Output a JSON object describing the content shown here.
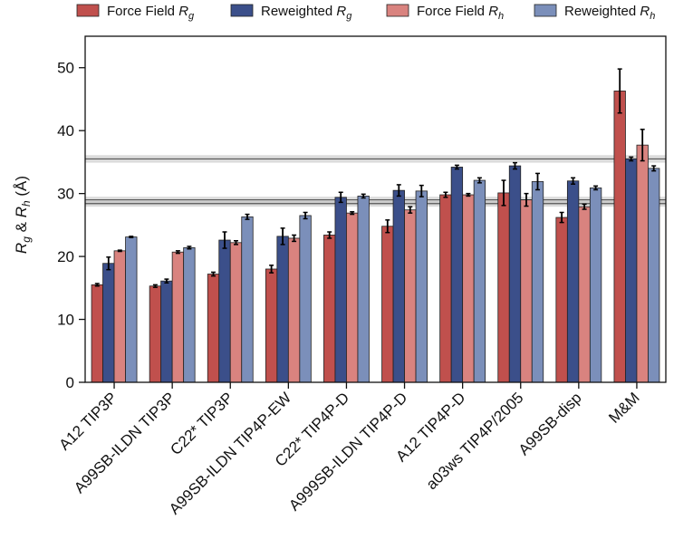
{
  "chart_data": {
    "type": "bar",
    "ylabel": "R_g & R_h (Å)",
    "ylim": [
      0,
      55
    ],
    "yticks": [
      0,
      10,
      20,
      30,
      40,
      50
    ],
    "legend_position": "top",
    "categories": [
      "A12 TIP3P",
      "A99SB-ILDN TIP3P",
      "C22* TIP3P",
      "A99SB-ILDN TIP4P-EW",
      "C22* TIP4P-D",
      "A999SB-ILDN TIP4P-D",
      "A12 TIP4P-D",
      "a03ws TIP4P/2005",
      "A99SB-disp",
      "M&M"
    ],
    "series": [
      {
        "name": "Force Field",
        "sub": "g",
        "color": "#c0504d",
        "values": [
          15.5,
          15.3,
          17.2,
          18.0,
          23.4,
          24.8,
          29.8,
          30.1,
          26.2,
          46.3
        ],
        "errors": [
          0.2,
          0.2,
          0.3,
          0.6,
          0.5,
          1.0,
          0.4,
          2.0,
          0.8,
          3.5
        ]
      },
      {
        "name": "Reweighted",
        "sub": "g",
        "color": "#3b4f8a",
        "values": [
          18.9,
          16.1,
          22.6,
          23.2,
          29.4,
          30.5,
          34.2,
          34.4,
          32.0,
          35.5
        ],
        "errors": [
          1.0,
          0.3,
          1.3,
          1.3,
          0.8,
          0.9,
          0.3,
          0.5,
          0.5,
          0.3
        ]
      },
      {
        "name": "Force Field",
        "sub": "h",
        "color": "#d9837f",
        "values": [
          20.9,
          20.7,
          22.2,
          22.9,
          26.9,
          27.4,
          29.8,
          29.0,
          27.9,
          37.7
        ],
        "errors": [
          0.1,
          0.2,
          0.3,
          0.5,
          0.2,
          0.5,
          0.2,
          1.0,
          0.4,
          2.5
        ]
      },
      {
        "name": "Reweighted",
        "sub": "h",
        "color": "#7b8fba",
        "values": [
          23.1,
          21.4,
          26.3,
          26.5,
          29.6,
          30.4,
          32.1,
          31.9,
          30.9,
          34.0
        ],
        "errors": [
          0.1,
          0.2,
          0.4,
          0.5,
          0.3,
          0.9,
          0.4,
          1.3,
          0.3,
          0.4
        ]
      }
    ],
    "reference_lines": [
      {
        "value": 35.5,
        "band": 0.6
      },
      {
        "value": 29.0,
        "band": 0.5
      },
      {
        "value": 28.4,
        "band": 0.5
      }
    ]
  }
}
